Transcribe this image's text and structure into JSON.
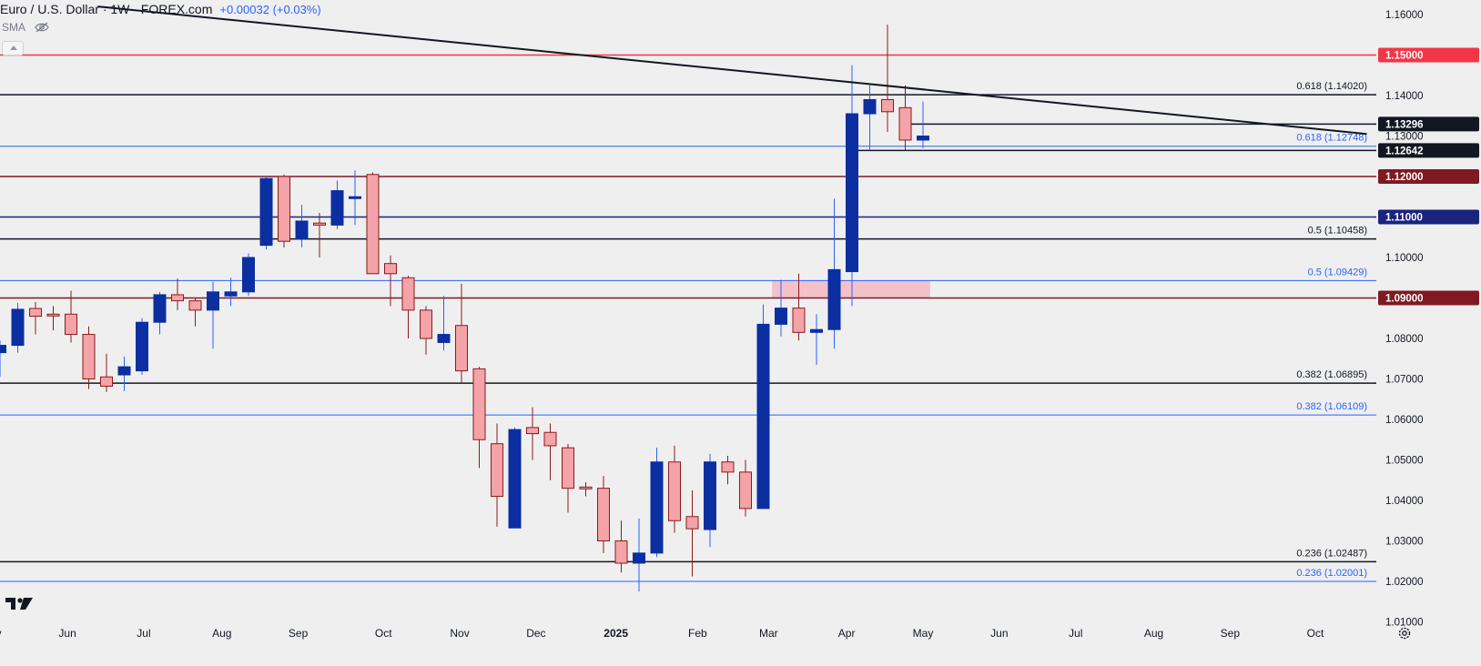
{
  "header": {
    "title": "Euro / U.S. Dollar · 1W · FOREX.com",
    "change": "+0.00032 (+0.03%)",
    "indicator": "SMA"
  },
  "colors": {
    "background": "#efefef",
    "bull": "#0b2fa0",
    "bear": "#f4a3a8",
    "bear_edge": "#8b1a1a",
    "bull_wick": "#2962ff",
    "fib_black": "#131722",
    "fib_blue": "#2962ff",
    "level_red": "#f23645",
    "level_maroon": "#801922",
    "level_navy": "#1a237e",
    "zone": "#f5b9c4"
  },
  "chart_data": {
    "type": "candlestick",
    "title": "Euro / U.S. Dollar · 1W · FOREX.com",
    "ylim": [
      1.01,
      1.1625
    ],
    "y_ticks": [
      "1.16000",
      "1.15000",
      "1.14000",
      "1.13000",
      "1.12000",
      "1.11000",
      "1.10000",
      "1.09000",
      "1.08000",
      "1.07000",
      "1.06000",
      "1.05000",
      "1.04000",
      "1.03000",
      "1.02000",
      "1.01000"
    ],
    "x_labels": [
      {
        "label": "May",
        "week": -0.5,
        "bold": false
      },
      {
        "label": "Jun",
        "week": 3.8,
        "bold": false
      },
      {
        "label": "Jul",
        "week": 8.1,
        "bold": false
      },
      {
        "label": "Aug",
        "week": 12.5,
        "bold": false
      },
      {
        "label": "Sep",
        "week": 16.8,
        "bold": false
      },
      {
        "label": "Oct",
        "week": 21.6,
        "bold": false
      },
      {
        "label": "Nov",
        "week": 25.9,
        "bold": false
      },
      {
        "label": "Dec",
        "week": 30.2,
        "bold": false
      },
      {
        "label": "2025",
        "week": 34.7,
        "bold": true
      },
      {
        "label": "Feb",
        "week": 39.3,
        "bold": false
      },
      {
        "label": "Mar",
        "week": 43.3,
        "bold": false
      },
      {
        "label": "Apr",
        "week": 47.7,
        "bold": false
      },
      {
        "label": "May",
        "week": 52.0,
        "bold": false
      },
      {
        "label": "Jun",
        "week": 56.3,
        "bold": false
      },
      {
        "label": "Jul",
        "week": 60.6,
        "bold": false
      },
      {
        "label": "Aug",
        "week": 65.0,
        "bold": false
      },
      {
        "label": "Sep",
        "week": 69.3,
        "bold": false
      },
      {
        "label": "Oct",
        "week": 74.1,
        "bold": false
      }
    ],
    "candles": [
      [
        1.0765,
        1.0795,
        1.0705,
        1.0783
      ],
      [
        1.0783,
        1.0888,
        1.0765,
        1.0872
      ],
      [
        1.0874,
        1.089,
        1.081,
        1.0855
      ],
      [
        1.086,
        1.088,
        1.082,
        1.0858
      ],
      [
        1.086,
        1.0918,
        1.079,
        1.081
      ],
      [
        1.081,
        1.083,
        1.0675,
        1.07
      ],
      [
        1.0705,
        1.0762,
        1.0668,
        1.0682
      ],
      [
        1.071,
        1.0755,
        1.067,
        1.073
      ],
      [
        1.072,
        1.085,
        1.071,
        1.084
      ],
      [
        1.084,
        1.0915,
        1.081,
        1.0908
      ],
      [
        1.0908,
        1.0948,
        1.087,
        1.0893
      ],
      [
        1.0893,
        1.09,
        1.083,
        1.087
      ],
      [
        1.087,
        1.094,
        1.0775,
        1.0915
      ],
      [
        1.0905,
        1.095,
        1.088,
        1.0915
      ],
      [
        1.0915,
        1.101,
        1.0905,
        1.1
      ],
      [
        1.103,
        1.12,
        1.102,
        1.1195
      ],
      [
        1.12,
        1.1205,
        1.1025,
        1.104
      ],
      [
        1.1045,
        1.113,
        1.1025,
        1.109
      ],
      [
        1.1085,
        1.111,
        1.1,
        1.108
      ],
      [
        1.108,
        1.119,
        1.107,
        1.1165
      ],
      [
        1.115,
        1.1215,
        1.108,
        1.115
      ],
      [
        1.1205,
        1.121,
        1.097,
        1.096
      ],
      [
        1.0985,
        1.1005,
        1.088,
        1.096
      ],
      [
        1.095,
        1.0955,
        1.08,
        1.087
      ],
      [
        1.087,
        1.088,
        1.076,
        1.08
      ],
      [
        1.079,
        1.0905,
        1.077,
        1.081
      ],
      [
        1.0832,
        1.0935,
        1.069,
        1.072
      ],
      [
        1.0725,
        1.073,
        1.048,
        1.055
      ],
      [
        1.054,
        1.059,
        1.0335,
        1.041
      ],
      [
        1.0332,
        1.058,
        1.0332,
        1.0575
      ],
      [
        1.058,
        1.063,
        1.05,
        1.0565
      ],
      [
        1.0568,
        1.059,
        1.045,
        1.0535
      ],
      [
        1.053,
        1.054,
        1.037,
        1.043
      ],
      [
        1.0433,
        1.0445,
        1.041,
        1.043
      ],
      [
        1.043,
        1.046,
        1.027,
        1.03
      ],
      [
        1.03,
        1.035,
        1.0222,
        1.0245
      ],
      [
        1.0245,
        1.0355,
        1.0175,
        1.027
      ],
      [
        1.027,
        1.053,
        1.026,
        1.0495
      ],
      [
        1.0495,
        1.0535,
        1.032,
        1.035
      ],
      [
        1.036,
        1.0425,
        1.0212,
        1.033
      ],
      [
        1.0328,
        1.0515,
        1.0285,
        1.0495
      ],
      [
        1.0495,
        1.051,
        1.044,
        1.047
      ],
      [
        1.047,
        1.05,
        1.036,
        1.038
      ],
      [
        1.038,
        1.0884,
        1.038,
        1.0835
      ],
      [
        1.0835,
        1.0945,
        1.0805,
        1.0875
      ],
      [
        1.0875,
        1.096,
        1.0795,
        1.0815
      ],
      [
        1.0815,
        1.086,
        1.0735,
        1.0822
      ],
      [
        1.0822,
        1.1145,
        1.0775,
        1.097
      ],
      [
        1.0965,
        1.1475,
        1.088,
        1.1355
      ],
      [
        1.1355,
        1.1425,
        1.1265,
        1.139
      ],
      [
        1.139,
        1.1575,
        1.131,
        1.136
      ],
      [
        1.137,
        1.1425,
        1.1265,
        1.129
      ],
      [
        1.129,
        1.1385,
        1.127,
        1.13
      ]
    ],
    "current_week_index": 52,
    "levels": [
      {
        "value": 1.15,
        "label": "",
        "tag": "1.15000",
        "style": "red"
      },
      {
        "value": 1.1402,
        "label": "0.618 (1.14020)",
        "tag": "",
        "style": "fib_black"
      },
      {
        "value": 1.13296,
        "label": "",
        "tag": "1.13296",
        "style": "ray_black"
      },
      {
        "value": 1.12748,
        "label": "0.618 (1.12748)",
        "tag": "",
        "style": "fib_blue"
      },
      {
        "value": 1.12642,
        "label": "",
        "tag": "1.12642",
        "style": "ray_black"
      },
      {
        "value": 1.12,
        "label": "",
        "tag": "1.12000",
        "style": "maroon"
      },
      {
        "value": 1.11,
        "label": "",
        "tag": "1.11000",
        "style": "navy"
      },
      {
        "value": 1.10458,
        "label": "0.5 (1.10458)",
        "tag": "",
        "style": "fib_black"
      },
      {
        "value": 1.09429,
        "label": "0.5 (1.09429)",
        "tag": "",
        "style": "fib_blue"
      },
      {
        "value": 1.09,
        "label": "",
        "tag": "1.09000",
        "style": "maroon"
      },
      {
        "value": 1.06895,
        "label": "0.382 (1.06895)",
        "tag": "",
        "style": "fib_black"
      },
      {
        "value": 1.06109,
        "label": "0.382 (1.06109)",
        "tag": "",
        "style": "fib_blue"
      },
      {
        "value": 1.02487,
        "label": "0.236 (1.02487)",
        "tag": "",
        "style": "fib_black"
      },
      {
        "value": 1.02001,
        "label": "0.236 (1.02001)",
        "tag": "",
        "style": "fib_blue"
      }
    ],
    "rays": [
      {
        "value": 1.13296,
        "from_week": 51.0
      },
      {
        "value": 1.12642,
        "from_week": 48.3
      }
    ],
    "trendline": {
      "from": {
        "week": 5.5,
        "value": 1.162
      },
      "to": {
        "week": 77.0,
        "value": 1.1305
      }
    },
    "zone": {
      "from_week": 43.5,
      "to_week": 52.4,
      "low": 1.09,
      "high": 1.0943
    }
  }
}
